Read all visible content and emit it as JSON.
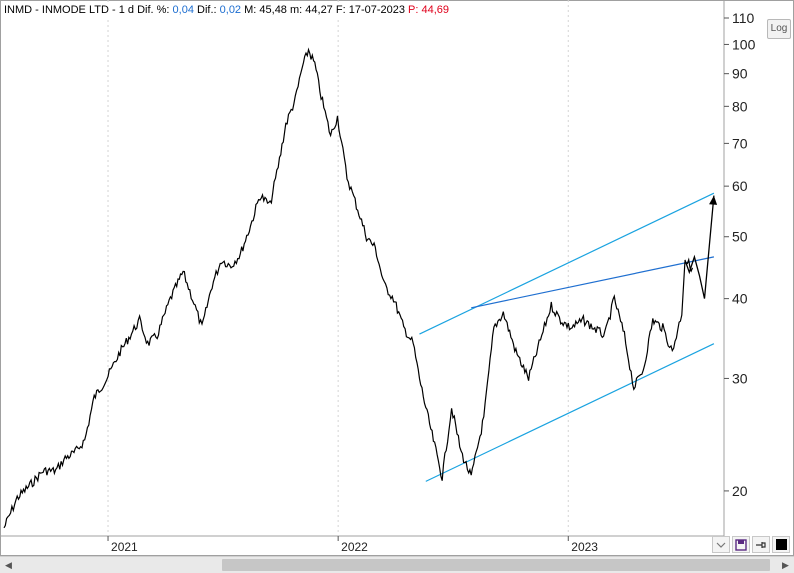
{
  "header": {
    "symbol": "INMD - INMODE LTD",
    "period": "1 d",
    "dif_pct_label": "Dif. %:",
    "dif_pct_value": "0,04",
    "dif_label": "Dif.:",
    "dif_value": "0,02",
    "max_label": "M: 45,48",
    "min_label": "m: 44,27",
    "date_label": "F: 17-07-2023",
    "price_label": "P: 44,69"
  },
  "toolbar": {
    "log_label": "Log"
  },
  "colors": {
    "price": "#000000",
    "trendline": "#1aa3e0",
    "resistance": "#1f6fd0",
    "header_value": "#1c6dd0",
    "header_price": "#e0001b"
  },
  "icons": [
    "chevron-icon",
    "save-icon",
    "pin-icon",
    "color-swatch-icon",
    "arrow-left-icon",
    "arrow-right-icon"
  ],
  "chart_data": {
    "type": "line",
    "yscale": "log",
    "ylim": [
      17,
      110
    ],
    "xlim": [
      "2020-07-20",
      "2023-09-05"
    ],
    "y_ticks": [
      20,
      30,
      40,
      50,
      60,
      70,
      80,
      90,
      100,
      110
    ],
    "y_tick_labels": [
      "20",
      "30",
      "40",
      "50",
      "60",
      "70",
      "80",
      "90",
      "100",
      "110"
    ],
    "x_ticks": [
      "2021-01-01",
      "2022-01-01",
      "2023-01-01"
    ],
    "x_tick_labels": [
      "2021",
      "2022",
      "2023"
    ],
    "series": [
      {
        "x": [
          "2020-07-20",
          "2020-08-10",
          "2020-09-01",
          "2020-09-20",
          "2020-10-10",
          "2020-10-25",
          "2020-11-10",
          "2020-11-25",
          "2020-12-10",
          "2020-12-30",
          "2021-01-20",
          "2021-02-05",
          "2021-02-20",
          "2021-03-05",
          "2021-03-20",
          "2021-04-10",
          "2021-04-30",
          "2021-05-15",
          "2021-05-30",
          "2021-06-15",
          "2021-06-30",
          "2021-07-15",
          "2021-07-30",
          "2021-08-15",
          "2021-08-30",
          "2021-09-15",
          "2021-09-30",
          "2021-10-10",
          "2021-10-25",
          "2021-11-05",
          "2021-11-15",
          "2021-11-25",
          "2021-12-05",
          "2021-12-20",
          "2021-12-31",
          "2022-01-15",
          "2022-01-30",
          "2022-02-15",
          "2022-03-01",
          "2022-03-15",
          "2022-03-30",
          "2022-04-15",
          "2022-04-30",
          "2022-05-10",
          "2022-05-20",
          "2022-06-01",
          "2022-06-15",
          "2022-06-30",
          "2022-07-15",
          "2022-07-31",
          "2022-08-20",
          "2022-09-05",
          "2022-09-20",
          "2022-10-10",
          "2022-10-30",
          "2022-11-20",
          "2022-12-05",
          "2022-12-20",
          "2023-01-05",
          "2023-01-25",
          "2023-02-10",
          "2023-02-28",
          "2023-03-15",
          "2023-03-31",
          "2023-04-15",
          "2023-04-30",
          "2023-05-15",
          "2023-05-31",
          "2023-06-15",
          "2023-06-30",
          "2023-07-05",
          "2023-07-17"
        ],
        "values": [
          17.5,
          19.5,
          20.5,
          21.5,
          21.5,
          22.5,
          23,
          24,
          28,
          30,
          33,
          35,
          37,
          34,
          35,
          40,
          44,
          40,
          36,
          42,
          46,
          45,
          47,
          52,
          58,
          56,
          66,
          75,
          82,
          92,
          98,
          93,
          83,
          72,
          77,
          62,
          56,
          50,
          48,
          42,
          40,
          36,
          34,
          30,
          27,
          24,
          21,
          27,
          23,
          21,
          26,
          36,
          38,
          33,
          30,
          35,
          39,
          37,
          36,
          37,
          36,
          35,
          40,
          35,
          29,
          31,
          37,
          36,
          33,
          38,
          46,
          44.69
        ],
        "name": "INMD"
      }
    ],
    "trendlines": [
      {
        "name": "channel-upper",
        "x": [
          "2022-05-10",
          "2023-08-20"
        ],
        "y": [
          35.2,
          58.5
        ]
      },
      {
        "name": "channel-lower",
        "x": [
          "2022-05-20",
          "2023-08-20"
        ],
        "y": [
          20.7,
          34
        ]
      },
      {
        "name": "resistance",
        "x": [
          "2022-07-31",
          "2023-08-20"
        ],
        "y": [
          38.7,
          46.5
        ]
      }
    ],
    "annotations": [
      {
        "name": "projection-path",
        "x": [
          "2023-07-05",
          "2023-07-12",
          "2023-07-20",
          "2023-07-28",
          "2023-08-05",
          "2023-08-20"
        ],
        "y": [
          46,
          44,
          46.5,
          43.5,
          40,
          58
        ]
      }
    ],
    "grid": "vertical"
  }
}
